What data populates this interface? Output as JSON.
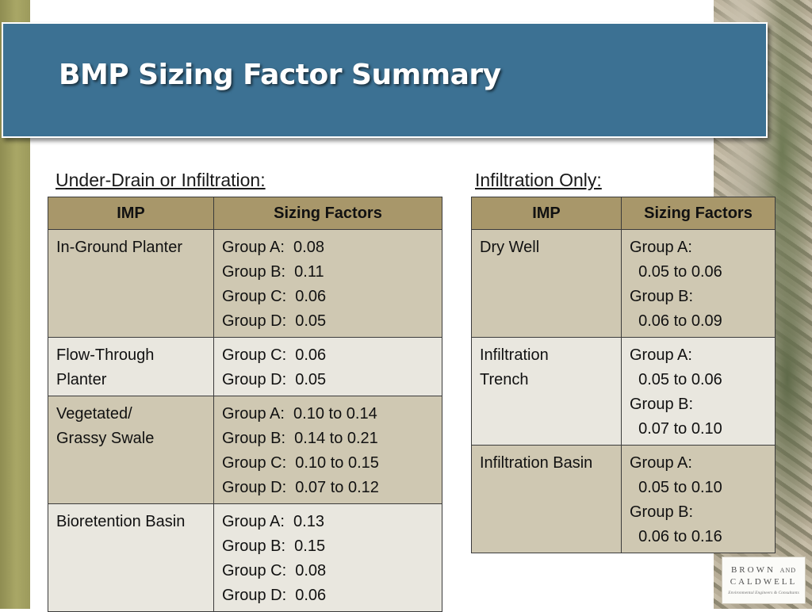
{
  "slide": {
    "title": "BMP Sizing Factor Summary"
  },
  "left_panel": {
    "caption": "Under-Drain or Infiltration:",
    "headers": {
      "imp": "IMP",
      "factors": "Sizing Factors"
    },
    "rows": [
      {
        "imp": [
          "In-Ground Planter"
        ],
        "factors": [
          "Group A:  0.08",
          "Group B:  0.11",
          "Group C:  0.06",
          "Group D:  0.05"
        ]
      },
      {
        "imp": [
          "Flow-Through",
          "Planter"
        ],
        "factors": [
          "Group C:  0.06",
          "Group D:  0.05"
        ]
      },
      {
        "imp": [
          "Vegetated/",
          "Grassy Swale"
        ],
        "factors": [
          "Group A:  0.10 to 0.14",
          "Group B:  0.14 to 0.21",
          "Group C:  0.10 to 0.15",
          "Group D:  0.07 to 0.12"
        ]
      },
      {
        "imp": [
          "Bioretention Basin"
        ],
        "factors": [
          "Group A:  0.13",
          "Group B:  0.15",
          "Group C:  0.08",
          "Group D:  0.06"
        ]
      }
    ]
  },
  "right_panel": {
    "caption": "Infiltration Only:",
    "headers": {
      "imp": "IMP",
      "factors": "Sizing Factors"
    },
    "rows": [
      {
        "imp": [
          "Dry Well"
        ],
        "factors": [
          "Group A:",
          "  0.05 to 0.06",
          "Group B:",
          "  0.06 to 0.09"
        ]
      },
      {
        "imp": [
          "Infiltration",
          "Trench"
        ],
        "factors": [
          "Group A:",
          "  0.05 to 0.06",
          "Group B:",
          "  0.07 to 0.10"
        ]
      },
      {
        "imp": [
          "Infiltration Basin"
        ],
        "factors": [
          "Group A:",
          "  0.05 to 0.10",
          "Group B:",
          "  0.06 to 0.16"
        ]
      }
    ]
  },
  "logo": {
    "line1_prefix": "BROWN",
    "and": "AND",
    "line2": "CALDWELL",
    "tagline": "Environmental Engineers & Consultants"
  },
  "colors": {
    "banner": "#3c7193",
    "header_cell": "#a8976a",
    "row_dark": "#cfc8b2",
    "row_light": "#e9e7df",
    "left_bar": "#a9a766"
  }
}
